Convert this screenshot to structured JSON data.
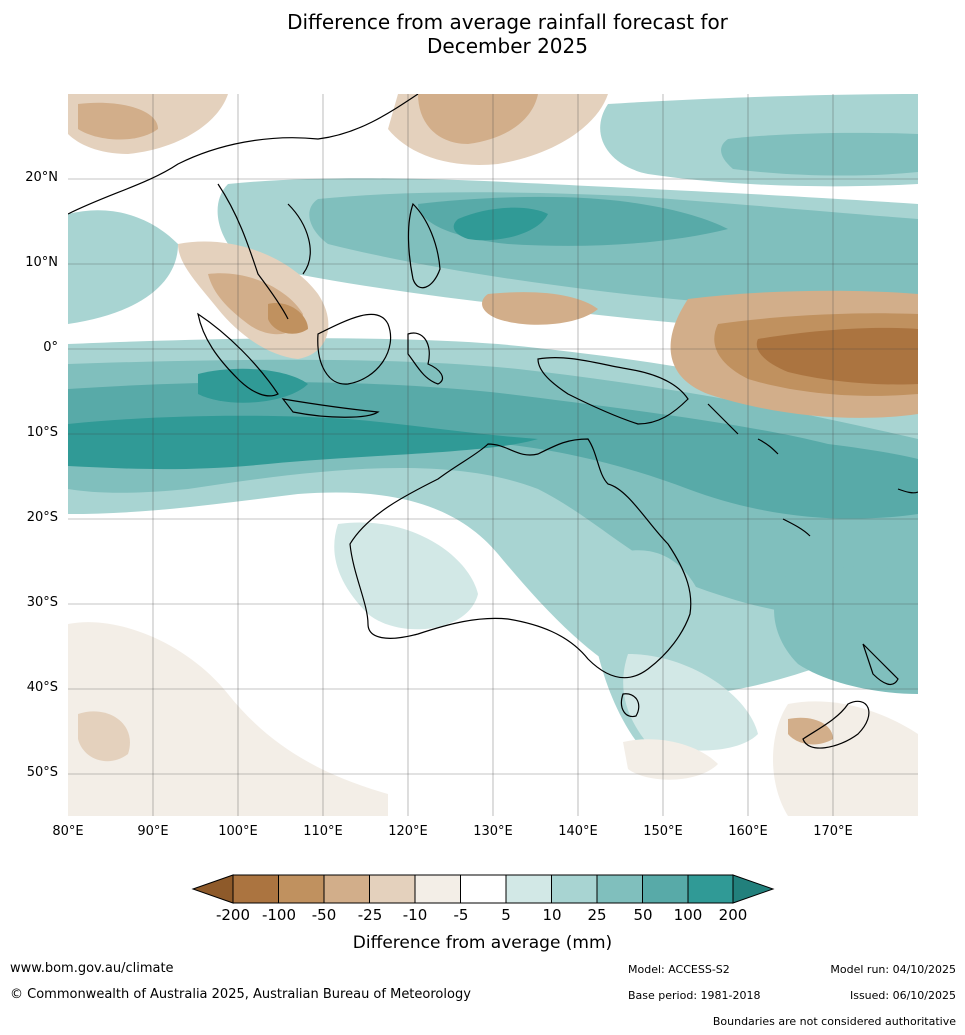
{
  "title": {
    "line1": "Difference from average rainfall forecast for",
    "line2": "December 2025"
  },
  "map": {
    "extent": {
      "lon_min": 80,
      "lon_max": 180,
      "lat_min": -55,
      "lat_max": 30
    },
    "lat_labels": [
      "20°N",
      "10°N",
      "0°",
      "10°S",
      "20°S",
      "30°S",
      "40°S",
      "50°S"
    ],
    "lon_labels": [
      "80°E",
      "90°E",
      "100°E",
      "110°E",
      "120°E",
      "130°E",
      "140°E",
      "150°E",
      "160°E",
      "170°E"
    ],
    "features": [
      {
        "name": "Australia",
        "icon": "land-outline"
      },
      {
        "name": "Indonesia",
        "icon": "land-outline"
      },
      {
        "name": "New Guinea",
        "icon": "land-outline"
      },
      {
        "name": "New Zealand",
        "icon": "land-outline"
      }
    ]
  },
  "colorbar": {
    "title": "Difference from average (mm)",
    "labels": [
      "-200",
      "-100",
      "-50",
      "-25",
      "-10",
      "-5",
      "5",
      "10",
      "25",
      "50",
      "100",
      "200"
    ],
    "colors": [
      "#8e5a2a",
      "#ab7440",
      "#c0915f",
      "#d2ae8a",
      "#e4d1bd",
      "#f3eee7",
      "#ffffff",
      "#d2e8e6",
      "#a8d4d2",
      "#80bfbd",
      "#58aaa8",
      "#309a96",
      "#22807c"
    ]
  },
  "footer": {
    "website": "www.bom.gov.au/climate",
    "copyright": "© Commonwealth of Australia 2025, Australian Bureau of Meteorology",
    "model": "Model: ACCESS-S2",
    "base_period": "Base period: 1981-2018",
    "model_run": "Model run: 04/10/2025",
    "issued": "Issued: 06/10/2025",
    "boundaries": "Boundaries are not considered authoritative"
  }
}
